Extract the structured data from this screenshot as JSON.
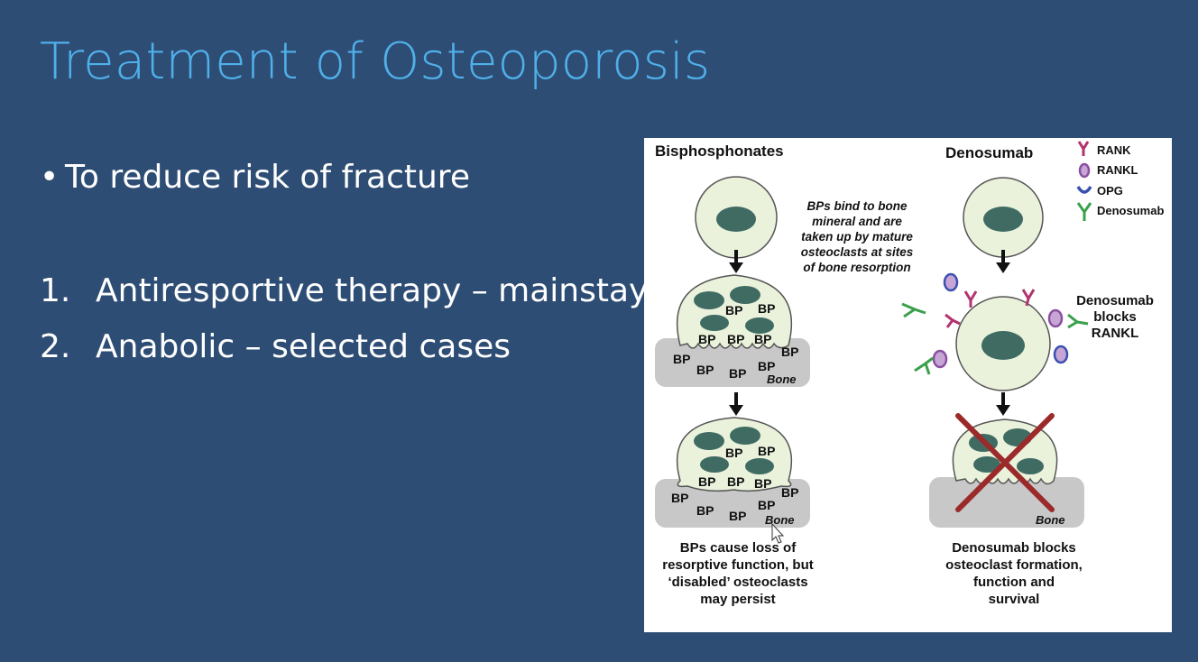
{
  "slide": {
    "title": "Treatment of Osteoporosis",
    "bullet": "To reduce risk of fracture",
    "list": [
      {
        "num": "1.",
        "text": "Antiresportive therapy – mainstay"
      },
      {
        "num": "2.",
        "text": "Anabolic – selected cases"
      }
    ]
  },
  "figure": {
    "left_heading": "Bisphosphonates",
    "right_heading": "Denosumab",
    "legend": [
      "RANK",
      "RANKL",
      "OPG",
      "Denosumab"
    ],
    "bp_note": [
      "BPs bind to bone",
      "mineral and are",
      "taken up by mature",
      "osteoclasts at sites",
      "of bone resorption"
    ],
    "bp_label": "BP",
    "bone_label": "Bone",
    "blocks_note": [
      "Denosumab",
      "blocks",
      "RANKL"
    ],
    "left_caption": [
      "BPs cause loss of",
      "resorptive function, but",
      "‘disabled’ osteoclasts",
      "may persist"
    ],
    "right_caption": [
      "Denosumab blocks",
      "osteoclast formation,",
      "function and",
      "survival"
    ],
    "colors": {
      "cell_fill": "#eaf2dc",
      "nucleus": "#3f6b63",
      "bone": "#c8c8c8",
      "rank": "#b3336e",
      "rankl": "#8a4fa0",
      "opg": "#3a4fb0",
      "denosumab": "#3aa04a",
      "cross": "#9b2a2a"
    }
  }
}
